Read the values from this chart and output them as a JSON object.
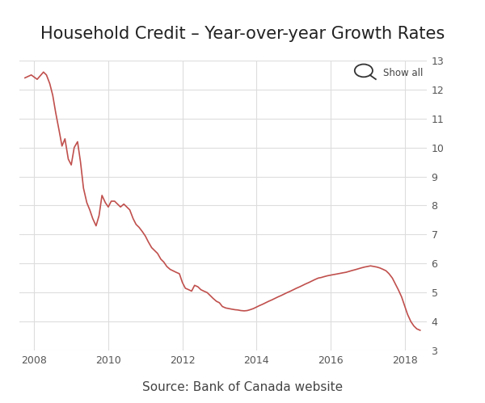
{
  "title": "Household Credit – Year-over-year Growth Rates",
  "source": "Source: Bank of Canada website",
  "line_color": "#c0504d",
  "background_color": "#ffffff",
  "grid_color": "#dddddd",
  "ylim": [
    3,
    13
  ],
  "yticks": [
    3,
    4,
    5,
    6,
    7,
    8,
    9,
    10,
    11,
    12,
    13
  ],
  "show_all_text": "Show all",
  "x_data": [
    2007.75,
    2007.92,
    2008.08,
    2008.25,
    2008.33,
    2008.42,
    2008.5,
    2008.58,
    2008.67,
    2008.75,
    2008.83,
    2008.92,
    2009.0,
    2009.08,
    2009.17,
    2009.25,
    2009.33,
    2009.42,
    2009.5,
    2009.58,
    2009.67,
    2009.75,
    2009.83,
    2009.92,
    2010.0,
    2010.08,
    2010.17,
    2010.25,
    2010.33,
    2010.42,
    2010.5,
    2010.58,
    2010.67,
    2010.75,
    2010.83,
    2010.92,
    2011.0,
    2011.08,
    2011.17,
    2011.25,
    2011.33,
    2011.42,
    2011.5,
    2011.58,
    2011.67,
    2011.75,
    2011.83,
    2011.92,
    2012.0,
    2012.08,
    2012.17,
    2012.25,
    2012.33,
    2012.42,
    2012.5,
    2012.58,
    2012.67,
    2012.75,
    2012.83,
    2012.92,
    2013.0,
    2013.08,
    2013.17,
    2013.25,
    2013.33,
    2013.42,
    2013.5,
    2013.58,
    2013.67,
    2013.75,
    2013.83,
    2013.92,
    2014.0,
    2014.08,
    2014.17,
    2014.25,
    2014.33,
    2014.42,
    2014.5,
    2014.58,
    2014.67,
    2014.75,
    2014.83,
    2014.92,
    2015.0,
    2015.08,
    2015.17,
    2015.25,
    2015.33,
    2015.42,
    2015.5,
    2015.58,
    2015.67,
    2015.75,
    2015.83,
    2015.92,
    2016.0,
    2016.08,
    2016.17,
    2016.25,
    2016.33,
    2016.42,
    2016.5,
    2016.58,
    2016.67,
    2016.75,
    2016.83,
    2016.92,
    2017.0,
    2017.08,
    2017.17,
    2017.25,
    2017.33,
    2017.42,
    2017.5,
    2017.58,
    2017.67,
    2017.75,
    2017.83,
    2017.92,
    2018.0,
    2018.08,
    2018.17,
    2018.25,
    2018.33,
    2018.42
  ],
  "y_data": [
    12.4,
    12.5,
    12.35,
    12.6,
    12.5,
    12.2,
    11.8,
    11.2,
    10.6,
    10.05,
    10.3,
    9.6,
    9.4,
    10.0,
    10.2,
    9.5,
    8.6,
    8.1,
    7.85,
    7.55,
    7.3,
    7.65,
    8.35,
    8.1,
    7.95,
    8.15,
    8.15,
    8.05,
    7.95,
    8.05,
    7.95,
    7.85,
    7.55,
    7.35,
    7.25,
    7.1,
    6.95,
    6.75,
    6.55,
    6.45,
    6.35,
    6.15,
    6.05,
    5.9,
    5.8,
    5.75,
    5.7,
    5.65,
    5.35,
    5.15,
    5.1,
    5.05,
    5.25,
    5.2,
    5.1,
    5.05,
    5.0,
    4.9,
    4.8,
    4.7,
    4.65,
    4.52,
    4.47,
    4.45,
    4.43,
    4.41,
    4.4,
    4.38,
    4.37,
    4.38,
    4.41,
    4.45,
    4.5,
    4.55,
    4.6,
    4.65,
    4.7,
    4.75,
    4.8,
    4.85,
    4.9,
    4.95,
    5.0,
    5.05,
    5.1,
    5.15,
    5.2,
    5.25,
    5.3,
    5.35,
    5.4,
    5.45,
    5.5,
    5.52,
    5.55,
    5.58,
    5.6,
    5.62,
    5.64,
    5.66,
    5.68,
    5.7,
    5.73,
    5.76,
    5.79,
    5.82,
    5.85,
    5.88,
    5.9,
    5.92,
    5.9,
    5.88,
    5.85,
    5.8,
    5.75,
    5.65,
    5.5,
    5.3,
    5.1,
    4.85,
    4.55,
    4.25,
    4.0,
    3.85,
    3.75,
    3.7
  ],
  "xtick_positions": [
    2008,
    2010,
    2012,
    2014,
    2016,
    2018
  ],
  "xtick_labels": [
    "2008",
    "2010",
    "2012",
    "2014",
    "2016",
    "2018"
  ],
  "xlim_left": 2007.6,
  "xlim_right": 2018.6,
  "title_fontsize": 15,
  "tick_fontsize": 9,
  "source_fontsize": 11
}
